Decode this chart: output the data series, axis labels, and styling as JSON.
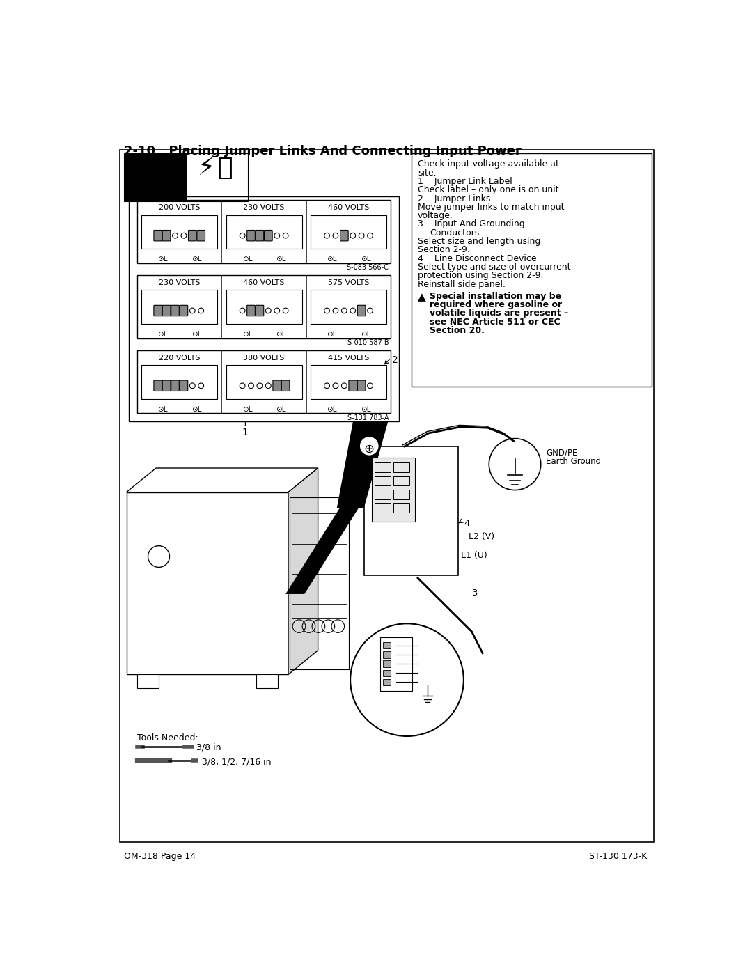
{
  "title": "2-10.  Placing Jumper Links And Connecting Input Power",
  "page_footer": "OM-318 Page 14",
  "page_ref": "ST-130 173-K",
  "bg_color": "#ffffff",
  "border_color": "#000000",
  "box1_volts": [
    "200 VOLTS",
    "230 VOLTS",
    "460 VOLTS"
  ],
  "box1_ref": "S-083 566-C",
  "box2_volts": [
    "230 VOLTS",
    "460 VOLTS",
    "575 VOLTS"
  ],
  "box2_ref": "S-010 587-B",
  "box3_volts": [
    "220 VOLTS",
    "380 VOLTS",
    "415 VOLTS"
  ],
  "box3_ref": "S-131 783-A",
  "right_texts": [
    "Check input voltage available at\nsite.",
    "1    Jumper Link Label",
    "Check label – only one is on unit.",
    "2    Jumper Links",
    "Move jumper links to match input\nvoltage.",
    "3    Input And Grounding\n        Conductors",
    "Select size and length using\nSection 2-9.",
    "4    Line Disconnect Device",
    "Select type and size of overcurrent\nprotection using Section 2-9.",
    "Reinstall side panel."
  ],
  "warning_bold": "Special installation may be required where gasoline or volatile liquids are present – see NEC Article 511 or CEC Section 20.",
  "gnd_label1": "GND/PE",
  "gnd_label2": "Earth Ground",
  "label_L2": "L2 (V)",
  "label_L1": "L1 (U)",
  "label_3": "3",
  "label_4": "4",
  "label_1": "1",
  "label_2": "2",
  "tools_header": "Tools Needed:",
  "tool1": "3/8 in",
  "tool2": "3/8, 1/2, 7/16 in"
}
